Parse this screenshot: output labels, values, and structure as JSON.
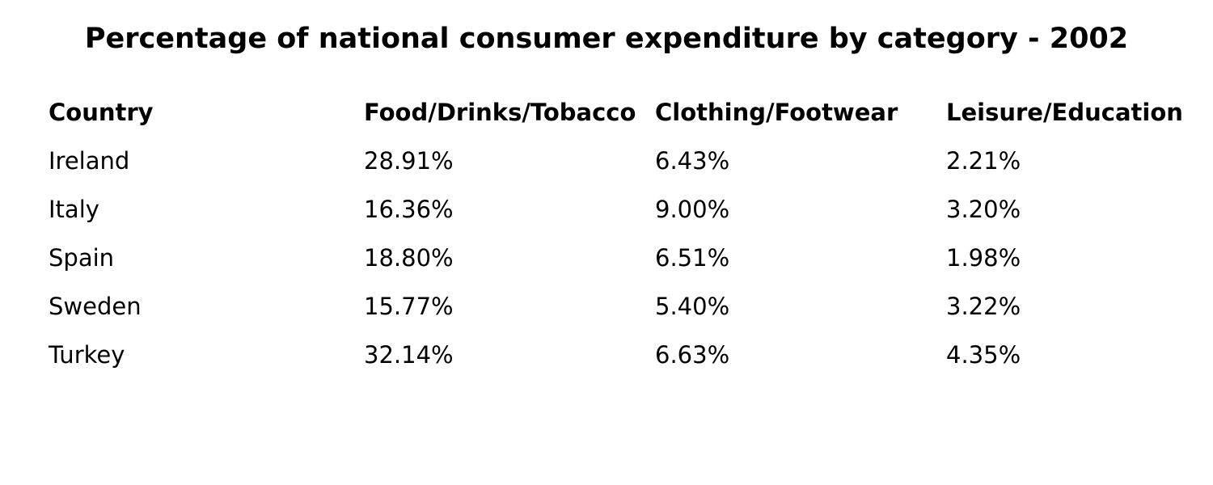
{
  "chart_data": {
    "type": "table",
    "title": "Percentage of national consumer expenditure by category - 2002",
    "columns": [
      "Country",
      "Food/Drinks/Tobacco",
      "Clothing/Footwear",
      "Leisure/Education"
    ],
    "rows": [
      [
        "Ireland",
        "28.91%",
        "6.43%",
        "2.21%"
      ],
      [
        "Italy",
        "16.36%",
        "9.00%",
        "3.20%"
      ],
      [
        "Spain",
        "18.80%",
        "6.51%",
        "1.98%"
      ],
      [
        "Sweden",
        "15.77%",
        "5.40%",
        "3.22%"
      ],
      [
        "Turkey",
        "32.14%",
        "6.63%",
        "4.35%"
      ]
    ]
  }
}
